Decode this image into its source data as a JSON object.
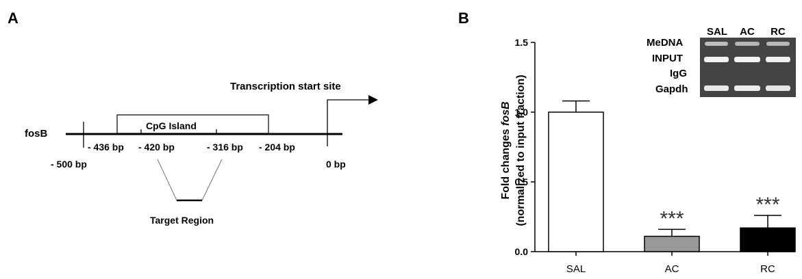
{
  "panel_a": {
    "letter": "A",
    "gene_label": "fosB",
    "tss_label": "Transcription start site",
    "cpg_label": "CpG Island",
    "target_label": "Target Region",
    "positions": [
      {
        "label": "- 500 bp",
        "bp": -500
      },
      {
        "label": "- 436 bp",
        "bp": -436
      },
      {
        "label": "- 420 bp",
        "bp": -420
      },
      {
        "label": "- 316 bp",
        "bp": -316
      },
      {
        "label": "- 204 bp",
        "bp": -204
      },
      {
        "label": "0 bp",
        "bp": 0
      }
    ]
  },
  "panel_b": {
    "letter": "B",
    "gel": {
      "lanes": [
        "SAL",
        "AC",
        "RC"
      ],
      "rows": [
        "MeDNA",
        "INPUT",
        "IgG",
        "Gapdh"
      ]
    }
  },
  "chart_data": {
    "type": "bar",
    "categories": [
      "SAL",
      "AC",
      "RC"
    ],
    "values": [
      1.0,
      0.11,
      0.17
    ],
    "errors": [
      0.08,
      0.05,
      0.09
    ],
    "significance": [
      "",
      "***",
      "***"
    ],
    "bar_colors": [
      "#ffffff",
      "#999999",
      "#000000"
    ],
    "ylabel_line1_prefix": "Fold changes ",
    "ylabel_line1_italic": "fosB",
    "ylabel_line2": "(normalized to input fraction)",
    "ylim": [
      0,
      1.5
    ],
    "yticks": [
      {
        "value": 0.0,
        "label": "0.0"
      },
      {
        "value": 0.5,
        "label": "0.5"
      },
      {
        "value": 1.0,
        "label": "1.0"
      },
      {
        "value": 1.5,
        "label": "1.5"
      }
    ]
  }
}
